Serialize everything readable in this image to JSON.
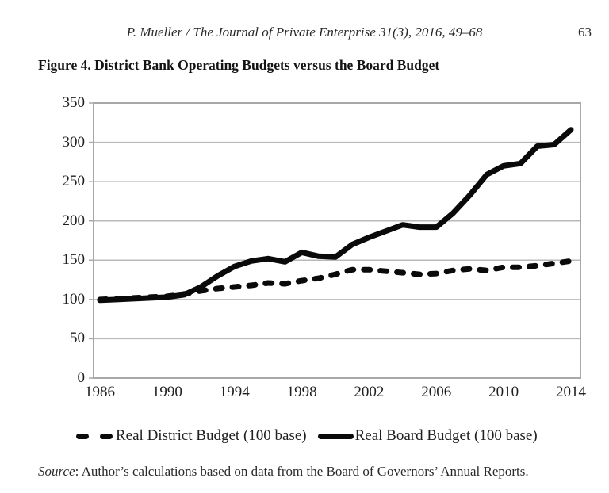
{
  "header": {
    "citation": "P. Mueller / The Journal of Private Enterprise 31(3), 2016, 49–68",
    "page_number": "63"
  },
  "figure": {
    "title": "Figure 4. District Bank Operating Budgets versus the Board Budget"
  },
  "source_note": {
    "label": "Source",
    "rest": ": Author’s calculations based on data from the Board of Governors’ Annual Reports."
  },
  "chart_data": {
    "type": "line",
    "title": "",
    "xlabel": "",
    "ylabel": "",
    "x": [
      1986,
      1987,
      1988,
      1989,
      1990,
      1991,
      1992,
      1993,
      1994,
      1995,
      1996,
      1997,
      1998,
      1999,
      2000,
      2001,
      2002,
      2003,
      2004,
      2005,
      2006,
      2007,
      2008,
      2009,
      2010,
      2011,
      2012,
      2013,
      2014
    ],
    "series": [
      {
        "name": "Real District Budget (100 base)",
        "style": "dashed",
        "values": [
          100,
          101,
          102,
          103,
          104,
          107,
          111,
          114,
          116,
          118,
          121,
          120,
          124,
          127,
          132,
          138,
          138,
          136,
          134,
          132,
          133,
          137,
          139,
          137,
          141,
          141,
          143,
          146,
          149
        ]
      },
      {
        "name": "Real Board Budget (100 base)",
        "style": "solid",
        "values": [
          99,
          100,
          101,
          102,
          103,
          106,
          116,
          130,
          142,
          149,
          152,
          148,
          160,
          155,
          154,
          170,
          179,
          187,
          195,
          192,
          192,
          210,
          233,
          259,
          270,
          273,
          295,
          297,
          316
        ]
      }
    ],
    "ylim": [
      0,
      350
    ],
    "yticks": [
      0,
      50,
      100,
      150,
      200,
      250,
      300,
      350
    ],
    "xticks": [
      1986,
      1990,
      1994,
      1998,
      2002,
      2006,
      2010,
      2014
    ],
    "grid": true,
    "legend_position": "bottom",
    "line_color": "#0a0a0a",
    "grid_color": "#b9b9b9",
    "border_color": "#a8a8a8"
  }
}
